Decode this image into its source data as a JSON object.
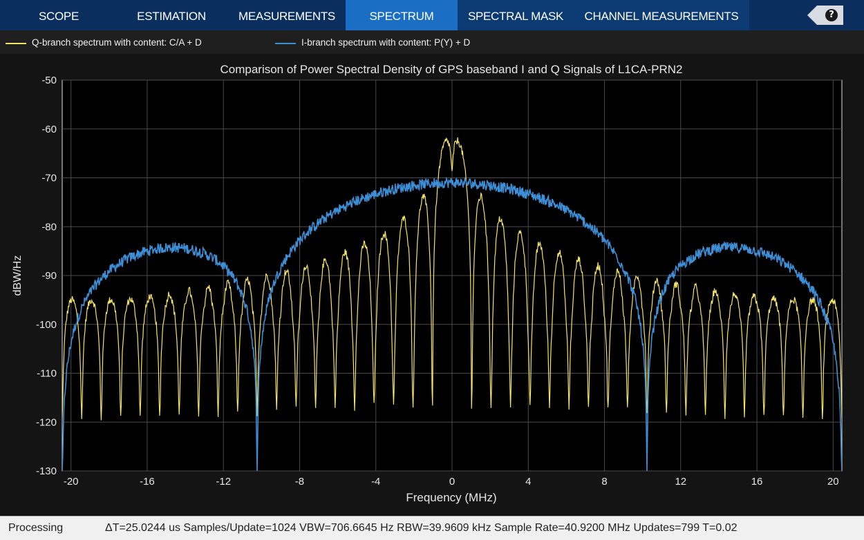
{
  "toolstrip": {
    "tabs": [
      {
        "label": "SCOPE",
        "active": false
      },
      {
        "label": "ESTIMATION",
        "active": false
      },
      {
        "label": "MEASUREMENTS",
        "active": false
      },
      {
        "label": "SPECTRUM",
        "active": true
      },
      {
        "label": "SPECTRAL MASK",
        "active": false
      },
      {
        "label": "CHANNEL MEASUREMENTS",
        "active": false
      }
    ],
    "help_icon": "help-question-icon",
    "help_glyph": "?"
  },
  "legend": {
    "items": [
      {
        "label": "Q-branch spectrum with content: C/A + D",
        "color": "#f5e46b"
      },
      {
        "label": "I-branch spectrum with content: P(Y) + D",
        "color": "#3d8fd8"
      }
    ]
  },
  "chart_data": {
    "type": "line",
    "title": "Comparison of Power Spectral Density of GPS baseband I and Q Signals of L1CA-PRN2",
    "xlabel": "Frequency (MHz)",
    "ylabel": "dBW/Hz",
    "xlim": [
      -20.46,
      20.46
    ],
    "ylim": [
      -130,
      -50
    ],
    "xticks": [
      -20,
      -16,
      -12,
      -8,
      -4,
      0,
      4,
      8,
      12,
      16,
      20
    ],
    "yticks": [
      -50,
      -60,
      -70,
      -80,
      -90,
      -100,
      -110,
      -120,
      -130
    ],
    "grid": true,
    "legend_position": "top-left",
    "background": "#141414",
    "axes_background": "#000000",
    "series": [
      {
        "name": "Q-branch spectrum with content: C/A + D",
        "color": "#f5e46b",
        "model": "sinc-squared",
        "peak_db": -60.5,
        "chip_rate_mhz": 1.023,
        "floor_db": -93.5,
        "null_depth_db": -123
      },
      {
        "name": "I-branch spectrum with content: P(Y) + D",
        "color": "#3d8fd8",
        "model": "sinc-squared",
        "peak_db": -71,
        "chip_rate_mhz": 10.23,
        "null_depth_db": -130
      }
    ]
  },
  "status": {
    "state": "Processing",
    "info": "ΔT=25.0244 us  Samples/Update=1024  VBW=706.6645 Hz  RBW=39.9609 kHz  Sample Rate=40.9200 MHz  Updates=799  T=0.02"
  }
}
